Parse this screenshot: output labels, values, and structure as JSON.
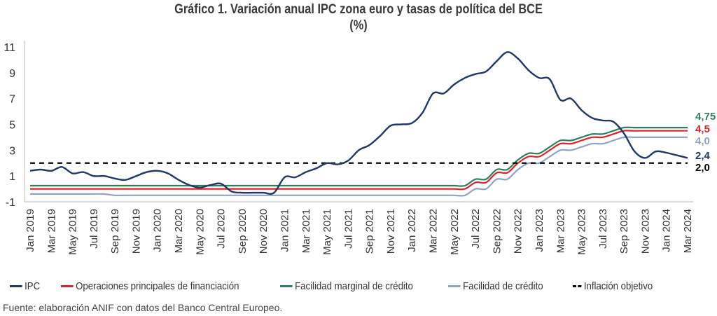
{
  "chart_data": {
    "type": "line",
    "title": "Gráfico 1. Variación anual IPC  zona euro y tasas de política del BCE",
    "subtitle": "(%)",
    "xlabel": "",
    "ylabel": "",
    "ylim": [
      -1,
      11
    ],
    "yticks": [
      "11",
      "9",
      "7",
      "5",
      "3",
      "1",
      "-1"
    ],
    "ytick_values": [
      11,
      9,
      7,
      5,
      3,
      1,
      -1
    ],
    "grid": false,
    "legend_position": "bottom",
    "x": [
      "Jan 2019",
      "Feb 2019",
      "Mar 2019",
      "Apr 2019",
      "May 2019",
      "Jun 2019",
      "Jul 2019",
      "Aug 2019",
      "Sep 2019",
      "Oct 2019",
      "Nov 2019",
      "Dec 2019",
      "Jan 2020",
      "Feb 2020",
      "Mar 2020",
      "Apr 2020",
      "May 2020",
      "Jun 2020",
      "Jul 2020",
      "Aug 2020",
      "Sep 2020",
      "Oct 2020",
      "Nov 2020",
      "Dec 2020",
      "Jan 2021",
      "Feb 2021",
      "Mar 2021",
      "Apr 2021",
      "May 2021",
      "Jun 2021",
      "Jul 2021",
      "Aug 2021",
      "Sep 2021",
      "Oct 2021",
      "Nov 2021",
      "Dec 2021",
      "Jan 2022",
      "Feb 2022",
      "Mar 2022",
      "Apr 2022",
      "May 2022",
      "Jun 2022",
      "Jul 2022",
      "Aug 2022",
      "Sep 2022",
      "Oct 2022",
      "Nov 2022",
      "Dec 2022",
      "Jan 2023",
      "Feb 2023",
      "Mar 2023",
      "Apr 2023",
      "May 2023",
      "Jun 2023",
      "Jul 2023",
      "Aug 2023",
      "Sep 2023",
      "Oct 2023",
      "Nov 2023",
      "Dec 2023",
      "Jan 2024",
      "Feb 2024",
      "Mar 2024"
    ],
    "xtick_labels": [
      "Jan 2019",
      "Mar 2019",
      "May 2019",
      "Jul 2019",
      "Sep 2019",
      "Nov 2019",
      "Jan 2020",
      "Mar 2020",
      "May 2020",
      "Jul 2020",
      "Sep 2020",
      "Nov 2020",
      "Jan 2021",
      "Mar 2021",
      "May 2021",
      "Jul 2021",
      "Sep 2021",
      "Nov 2021",
      "Jan 2022",
      "Mar 2022",
      "May 2022",
      "Jul 2022",
      "Sep 2022",
      "Nov 2022",
      "Jan 2023",
      "Mar 2023",
      "May 2023",
      "Jul 2023",
      "Sep 2023",
      "Nov 2023",
      "Jan 2024",
      "Mar 2024"
    ],
    "series": [
      {
        "name": "IPC",
        "color": "#1f3864",
        "dash": false,
        "values": [
          1.4,
          1.5,
          1.4,
          1.7,
          1.2,
          1.3,
          1.0,
          1.0,
          0.8,
          0.7,
          1.0,
          1.3,
          1.4,
          1.2,
          0.7,
          0.3,
          0.1,
          0.3,
          0.4,
          -0.2,
          -0.3,
          -0.3,
          -0.3,
          -0.3,
          0.9,
          0.9,
          1.3,
          1.6,
          2.0,
          1.9,
          2.2,
          3.0,
          3.4,
          4.1,
          4.9,
          5.0,
          5.1,
          5.9,
          7.4,
          7.4,
          8.1,
          8.6,
          8.9,
          9.1,
          9.9,
          10.6,
          10.1,
          9.2,
          8.6,
          8.5,
          6.9,
          7.0,
          6.1,
          5.5,
          5.3,
          5.2,
          4.3,
          2.9,
          2.4,
          2.9,
          2.8,
          2.6,
          2.4
        ],
        "end_label": "2,4"
      },
      {
        "name": "Operaciones principales de financiación",
        "color": "#e0202c",
        "dash": false,
        "values": [
          0,
          0,
          0,
          0,
          0,
          0,
          0,
          0,
          0,
          0,
          0,
          0,
          0,
          0,
          0,
          0,
          0,
          0,
          0,
          0,
          0,
          0,
          0,
          0,
          0,
          0,
          0,
          0,
          0,
          0,
          0,
          0,
          0,
          0,
          0,
          0,
          0,
          0,
          0,
          0,
          0,
          0,
          0.5,
          0.5,
          1.25,
          1.25,
          2.0,
          2.5,
          2.5,
          3.0,
          3.5,
          3.5,
          3.75,
          4.0,
          4.0,
          4.25,
          4.5,
          4.5,
          4.5,
          4.5,
          4.5,
          4.5,
          4.5
        ],
        "end_label": "4,5"
      },
      {
        "name": "Facilidad marginal de crédito",
        "color": "#2e7d5b",
        "dash": false,
        "values": [
          0.25,
          0.25,
          0.25,
          0.25,
          0.25,
          0.25,
          0.25,
          0.25,
          0.25,
          0.25,
          0.25,
          0.25,
          0.25,
          0.25,
          0.25,
          0.25,
          0.25,
          0.25,
          0.25,
          0.25,
          0.25,
          0.25,
          0.25,
          0.25,
          0.25,
          0.25,
          0.25,
          0.25,
          0.25,
          0.25,
          0.25,
          0.25,
          0.25,
          0.25,
          0.25,
          0.25,
          0.25,
          0.25,
          0.25,
          0.25,
          0.25,
          0.25,
          0.75,
          0.75,
          1.5,
          1.5,
          2.25,
          2.75,
          2.75,
          3.25,
          3.75,
          3.75,
          4.0,
          4.25,
          4.25,
          4.5,
          4.75,
          4.75,
          4.75,
          4.75,
          4.75,
          4.75,
          4.75
        ],
        "end_label": "4,75"
      },
      {
        "name": "Facilidad de crédito",
        "color": "#8ea4c4",
        "dash": false,
        "values": [
          -0.4,
          -0.4,
          -0.4,
          -0.4,
          -0.4,
          -0.4,
          -0.4,
          -0.4,
          -0.5,
          -0.5,
          -0.5,
          -0.5,
          -0.5,
          -0.5,
          -0.5,
          -0.5,
          -0.5,
          -0.5,
          -0.5,
          -0.5,
          -0.5,
          -0.5,
          -0.5,
          -0.5,
          -0.5,
          -0.5,
          -0.5,
          -0.5,
          -0.5,
          -0.5,
          -0.5,
          -0.5,
          -0.5,
          -0.5,
          -0.5,
          -0.5,
          -0.5,
          -0.5,
          -0.5,
          -0.5,
          -0.5,
          -0.5,
          0.0,
          0.0,
          0.75,
          0.75,
          1.5,
          2.0,
          2.0,
          2.5,
          3.0,
          3.0,
          3.25,
          3.5,
          3.5,
          3.75,
          4.0,
          4.0,
          4.0,
          4.0,
          4.0,
          4.0,
          4.0
        ],
        "end_label": "4,0"
      },
      {
        "name": "Inflación objetivo",
        "color": "#000000",
        "dash": true,
        "values": [
          2,
          2,
          2,
          2,
          2,
          2,
          2,
          2,
          2,
          2,
          2,
          2,
          2,
          2,
          2,
          2,
          2,
          2,
          2,
          2,
          2,
          2,
          2,
          2,
          2,
          2,
          2,
          2,
          2,
          2,
          2,
          2,
          2,
          2,
          2,
          2,
          2,
          2,
          2,
          2,
          2,
          2,
          2,
          2,
          2,
          2,
          2,
          2,
          2,
          2,
          2,
          2,
          2,
          2,
          2,
          2,
          2,
          2,
          2,
          2,
          2,
          2,
          2
        ],
        "end_label": "2,0"
      }
    ]
  },
  "header": {
    "title": "Gráfico 1. Variación anual IPC  zona euro y tasas de política del BCE",
    "subtitle": "(%)"
  },
  "legend": [
    {
      "label": "IPC",
      "color": "#1f3864",
      "dash": false
    },
    {
      "label": "Operaciones principales de financiación",
      "color": "#e0202c",
      "dash": false
    },
    {
      "label": "Facilidad marginal de crédito",
      "color": "#2e7d5b",
      "dash": false
    },
    {
      "label": "Facilidad de crédito",
      "color": "#8ea4c4",
      "dash": false
    },
    {
      "label": "Inflación objetivo",
      "color": "#000000",
      "dash": true
    }
  ],
  "source": "Fuente: elaboración ANIF con datos del Banco Central Europeo."
}
